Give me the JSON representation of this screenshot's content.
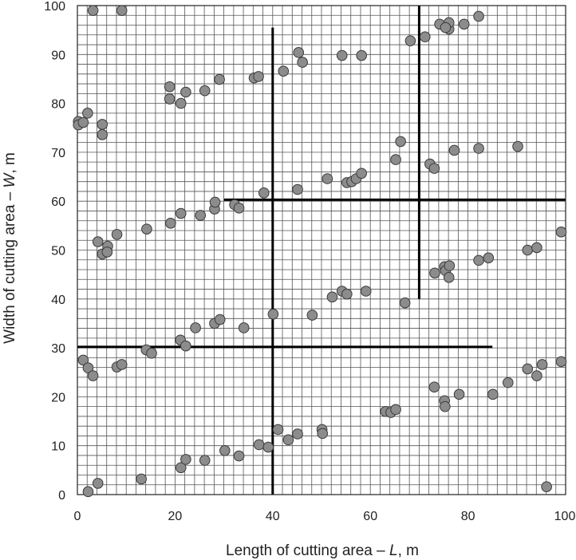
{
  "chart_data": {
    "type": "scatter",
    "title": "",
    "xlabel": {
      "prefix": "Length of cutting area – ",
      "symbol": "L",
      "suffix": ", m"
    },
    "ylabel": {
      "prefix": "Width of cutting area – ",
      "symbol": "W",
      "suffix": ", m"
    },
    "xlim": [
      0,
      100
    ],
    "ylim": [
      0,
      100
    ],
    "x_ticks": [
      "0",
      "20",
      "40",
      "60",
      "80",
      "100"
    ],
    "y_ticks": [
      "0",
      "10",
      "20",
      "30",
      "40",
      "50",
      "60",
      "70",
      "80",
      "90",
      "100"
    ],
    "minor_grid_step": 2,
    "grid": true,
    "legend": "none",
    "colors": {
      "marker_fill": "#8c8c8c",
      "marker_edge": "#3a3a3a",
      "grid": "#555555",
      "zone_lines": "#000000"
    },
    "zone_lines": [
      {
        "x1": 40,
        "y1": 0,
        "x2": 40,
        "y2": 95.5
      },
      {
        "x1": 70,
        "y1": 40,
        "x2": 70,
        "y2": 100
      },
      {
        "x1": 30,
        "y1": 60.3,
        "x2": 100,
        "y2": 60.3
      },
      {
        "x1": 0,
        "y1": 30.2,
        "x2": 85,
        "y2": 30.2
      }
    ],
    "points": [
      [
        3.2,
        99.0
      ],
      [
        9.1,
        99.0
      ],
      [
        0.2,
        76.3
      ],
      [
        0.2,
        75.6
      ],
      [
        1.2,
        76.1
      ],
      [
        2.1,
        78.0
      ],
      [
        5.1,
        75.7
      ],
      [
        5.1,
        73.6
      ],
      [
        18.9,
        83.4
      ],
      [
        18.9,
        80.9
      ],
      [
        21.2,
        80.0
      ],
      [
        22.2,
        82.3
      ],
      [
        26.1,
        82.6
      ],
      [
        29.1,
        84.9
      ],
      [
        36.2,
        85.2
      ],
      [
        37.1,
        85.5
      ],
      [
        42.2,
        86.6
      ],
      [
        45.3,
        90.4
      ],
      [
        46.1,
        88.4
      ],
      [
        54.2,
        89.8
      ],
      [
        58.2,
        89.8
      ],
      [
        68.2,
        92.8
      ],
      [
        71.2,
        93.6
      ],
      [
        74.2,
        96.2
      ],
      [
        76.1,
        95.2
      ],
      [
        76.1,
        96.5
      ],
      [
        75.4,
        95.5
      ],
      [
        79.2,
        96.2
      ],
      [
        82.2,
        97.8
      ],
      [
        4.2,
        51.7
      ],
      [
        5.1,
        49.2
      ],
      [
        6.2,
        50.8
      ],
      [
        6.1,
        49.6
      ],
      [
        8.1,
        53.2
      ],
      [
        14.2,
        54.3
      ],
      [
        19.1,
        55.5
      ],
      [
        21.2,
        57.5
      ],
      [
        25.2,
        57.1
      ],
      [
        28.1,
        58.4
      ],
      [
        28.2,
        59.8
      ],
      [
        32.2,
        59.3
      ],
      [
        33.1,
        58.6
      ],
      [
        38.2,
        61.7
      ],
      [
        45.1,
        62.4
      ],
      [
        51.2,
        64.6
      ],
      [
        55.2,
        63.8
      ],
      [
        56.2,
        64.0
      ],
      [
        57.1,
        64.6
      ],
      [
        58.2,
        65.7
      ],
      [
        65.2,
        68.5
      ],
      [
        66.2,
        72.2
      ],
      [
        72.2,
        67.6
      ],
      [
        73.1,
        66.7
      ],
      [
        77.2,
        70.4
      ],
      [
        82.2,
        70.8
      ],
      [
        90.2,
        71.2
      ],
      [
        1.2,
        27.5
      ],
      [
        2.2,
        25.9
      ],
      [
        3.2,
        24.3
      ],
      [
        8.1,
        26.1
      ],
      [
        9.1,
        26.6
      ],
      [
        14.1,
        29.6
      ],
      [
        15.2,
        28.9
      ],
      [
        21.1,
        31.6
      ],
      [
        22.2,
        30.4
      ],
      [
        24.2,
        34.1
      ],
      [
        28.1,
        35.0
      ],
      [
        29.2,
        35.8
      ],
      [
        34.1,
        34.1
      ],
      [
        40.1,
        36.9
      ],
      [
        48.1,
        36.7
      ],
      [
        52.2,
        40.4
      ],
      [
        54.2,
        41.6
      ],
      [
        55.2,
        41.0
      ],
      [
        59.1,
        41.6
      ],
      [
        67.1,
        39.2
      ],
      [
        73.2,
        45.3
      ],
      [
        75.2,
        46.6
      ],
      [
        75.4,
        45.8
      ],
      [
        76.1,
        44.4
      ],
      [
        76.2,
        46.8
      ],
      [
        82.2,
        47.9
      ],
      [
        84.2,
        48.4
      ],
      [
        92.2,
        50.0
      ],
      [
        94.1,
        50.5
      ],
      [
        99.1,
        53.7
      ],
      [
        2.2,
        0.6
      ],
      [
        4.2,
        2.3
      ],
      [
        13.1,
        3.2
      ],
      [
        21.2,
        5.5
      ],
      [
        22.2,
        7.2
      ],
      [
        26.1,
        7.0
      ],
      [
        30.2,
        9.0
      ],
      [
        33.1,
        7.9
      ],
      [
        37.2,
        10.2
      ],
      [
        39.1,
        9.7
      ],
      [
        41.1,
        13.3
      ],
      [
        43.2,
        11.2
      ],
      [
        45.1,
        12.4
      ],
      [
        50.1,
        13.3
      ],
      [
        50.2,
        12.5
      ],
      [
        63.1,
        17.0
      ],
      [
        64.2,
        16.8
      ],
      [
        65.2,
        17.4
      ],
      [
        73.1,
        22.0
      ],
      [
        75.2,
        19.2
      ],
      [
        75.3,
        18.0
      ],
      [
        78.2,
        20.5
      ],
      [
        85.1,
        20.5
      ],
      [
        88.2,
        22.9
      ],
      [
        92.2,
        25.7
      ],
      [
        94.1,
        24.3
      ],
      [
        95.2,
        26.6
      ],
      [
        99.1,
        27.2
      ],
      [
        96.1,
        1.6
      ]
    ]
  }
}
